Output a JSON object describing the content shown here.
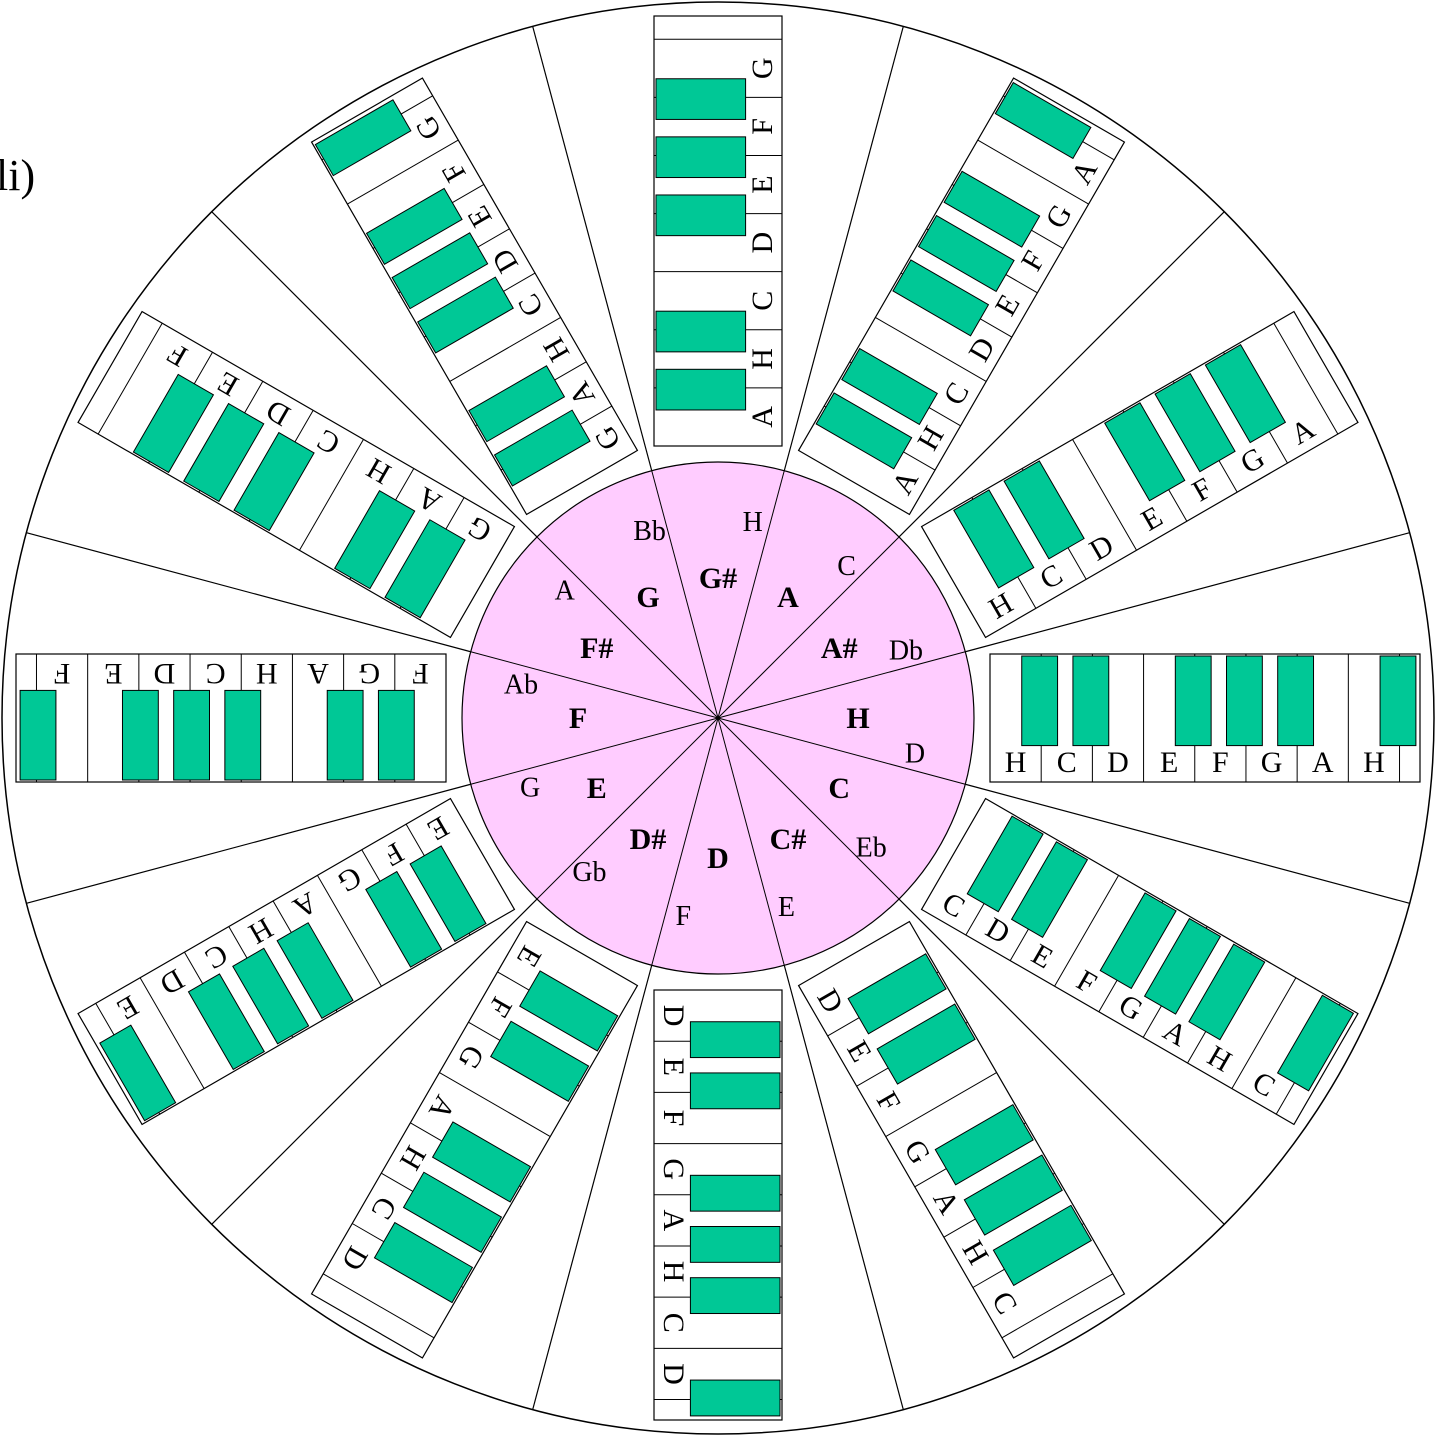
{
  "corner_label": "li)",
  "colors": {
    "outline": "#000000",
    "background": "#ffffff",
    "center_fill": "#ffccff",
    "black_key": "#00c896",
    "white_key": "#ffffff"
  },
  "sectors": [
    {
      "key": "H",
      "minor": "D",
      "labels": [
        "H",
        "C",
        "D",
        "E",
        "F",
        "G",
        "A",
        "H"
      ]
    },
    {
      "key": "C",
      "minor": "Eb",
      "labels": [
        "C",
        "D",
        "E",
        "F",
        "G",
        "A",
        "H",
        "C"
      ]
    },
    {
      "key": "C#",
      "minor": "E",
      "labels": [
        "D",
        "E",
        "F",
        "G",
        "A",
        "H",
        "C"
      ]
    },
    {
      "key": "D",
      "minor": "F",
      "labels": [
        "D",
        "E",
        "F",
        "G",
        "A",
        "H",
        "C",
        "D"
      ]
    },
    {
      "key": "D#",
      "minor": "Gb",
      "labels": [
        "E",
        "F",
        "G",
        "A",
        "H",
        "C",
        "D"
      ]
    },
    {
      "key": "E",
      "minor": "G",
      "labels": [
        "E",
        "F",
        "G",
        "A",
        "H",
        "C",
        "D",
        "E"
      ]
    },
    {
      "key": "F",
      "minor": "Ab",
      "labels": [
        "F",
        "G",
        "A",
        "H",
        "C",
        "D",
        "E",
        "F"
      ]
    },
    {
      "key": "F#",
      "minor": "A",
      "labels": [
        "G",
        "A",
        "H",
        "C",
        "D",
        "E",
        "F"
      ]
    },
    {
      "key": "G",
      "minor": "Bb",
      "labels": [
        "G",
        "A",
        "H",
        "C",
        "D",
        "E",
        "F",
        "G"
      ]
    },
    {
      "key": "G#",
      "minor": "H",
      "labels": [
        "A",
        "H",
        "C",
        "D",
        "E",
        "F",
        "G"
      ]
    },
    {
      "key": "A",
      "minor": "C",
      "labels": [
        "A",
        "H",
        "C",
        "D",
        "E",
        "F",
        "G",
        "A"
      ]
    },
    {
      "key": "A#",
      "minor": "Db",
      "labels": [
        "H",
        "C",
        "D",
        "E",
        "F",
        "G",
        "A"
      ]
    }
  ]
}
